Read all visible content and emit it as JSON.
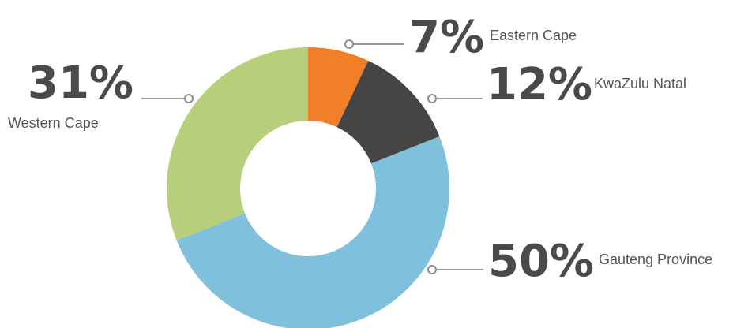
{
  "chart_data": {
    "type": "pie",
    "variant": "donut",
    "title": "",
    "slices": [
      {
        "label": "Eastern Cape",
        "value": 7,
        "display": "7%",
        "color": "#f07f27"
      },
      {
        "label": "KwaZulu Natal",
        "value": 12,
        "display": "12%",
        "color": "#454545"
      },
      {
        "label": "Gauteng Province",
        "value": 50,
        "display": "50%",
        "color": "#7fc1dd"
      },
      {
        "label": "Western Cape",
        "value": 31,
        "display": "31%",
        "color": "#b7cf7a"
      }
    ]
  }
}
